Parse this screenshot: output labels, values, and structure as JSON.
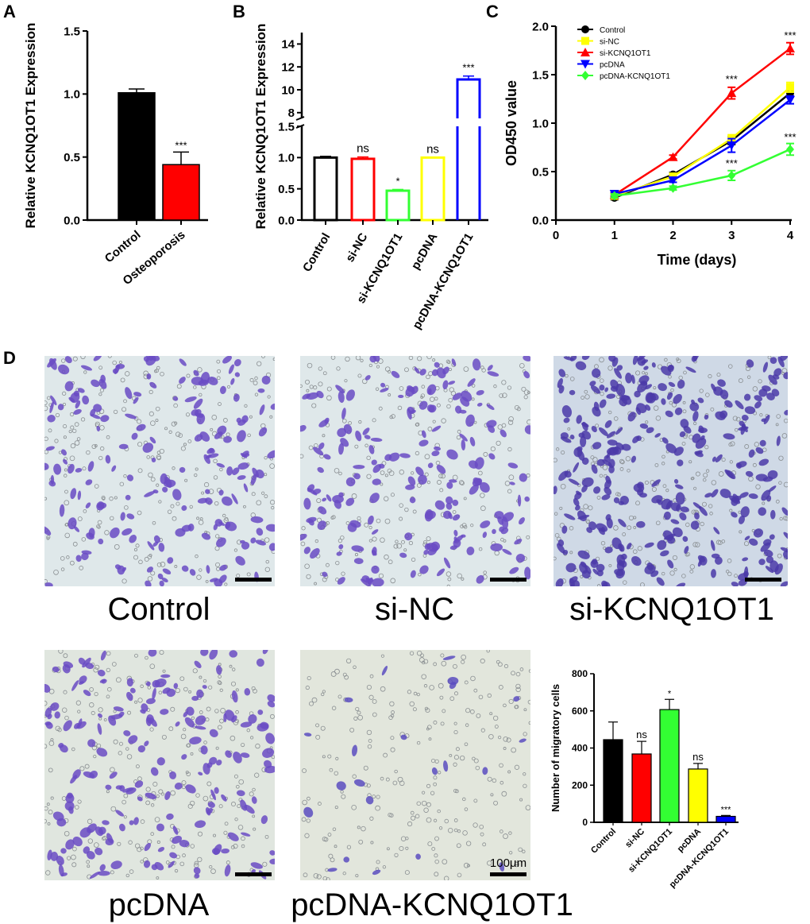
{
  "panel_letters": [
    "A",
    "B",
    "C",
    "D"
  ],
  "scale_bar_label": "100μm",
  "micrographs": [
    {
      "label": "Control",
      "density": "high"
    },
    {
      "label": "si-NC",
      "density": "high"
    },
    {
      "label": "si-KCNQ1OT1",
      "density": "very-high"
    },
    {
      "label": "pcDNA",
      "density": "high"
    },
    {
      "label": "pcDNA-KCNQ1OT1",
      "density": "low"
    }
  ],
  "colors": {
    "black": "#000000",
    "red": "#ff0000",
    "green": "#33ff33",
    "yellow": "#ffff00",
    "blue": "#0000ff",
    "stain": "#6a4bc4",
    "background": "#dfe8ea"
  },
  "chart_data": [
    {
      "id": "A",
      "type": "bar",
      "ylabel": "Relative KCNQ1OT1 Expression",
      "categories": [
        "Control",
        "Osteoporosis"
      ],
      "values": [
        1.01,
        0.44
      ],
      "errors": [
        0.03,
        0.1
      ],
      "colors": [
        "#000000",
        "#ff0000"
      ],
      "significance": [
        "",
        "***"
      ],
      "ylim": [
        0,
        1.5
      ],
      "yticks": [
        "0.0",
        "0.5",
        "1.0",
        "1.5"
      ]
    },
    {
      "id": "B",
      "type": "bar",
      "ylabel": "Relative KCNQ1OT1 Expression",
      "categories": [
        "Control",
        "si-NC",
        "si-KCNQ1OT1",
        "pcDNA",
        "pcDNA-KCNQ1OT1"
      ],
      "values": [
        1.0,
        0.98,
        0.47,
        1.0,
        10.9
      ],
      "errors": [
        0.02,
        0.03,
        0.02,
        0.0,
        0.3
      ],
      "colors": [
        "#000000",
        "#ff0000",
        "#33ff33",
        "#ffff00",
        "#0000ff"
      ],
      "significance": [
        "",
        "ns",
        "*",
        "ns",
        "***"
      ],
      "fill": "hollow",
      "axis_break": true,
      "ylim_lower": [
        0,
        1.5
      ],
      "ylim_upper": [
        7.5,
        15
      ],
      "yticks_lower": [
        "0.0",
        "0.5",
        "1.0",
        "1.5"
      ],
      "yticks_upper": [
        "8",
        "10",
        "12",
        "14"
      ]
    },
    {
      "id": "C",
      "type": "line",
      "xlabel": "Time (days)",
      "ylabel": "OD450 value",
      "xlim": [
        0,
        4
      ],
      "ylim": [
        0,
        2.0
      ],
      "xticks": [
        "0",
        "1",
        "2",
        "3",
        "4"
      ],
      "yticks": [
        "0.0",
        "0.5",
        "1.0",
        "1.5",
        "2.0"
      ],
      "x": [
        1,
        2,
        3,
        4
      ],
      "legend_position": "top-left",
      "series": [
        {
          "name": "Control",
          "color": "#000000",
          "marker": "circle",
          "values": [
            0.23,
            0.47,
            0.82,
            1.31
          ],
          "errors": [
            0.02,
            0.02,
            0.04,
            0.04
          ]
        },
        {
          "name": "si-NC",
          "color": "#ffff00",
          "marker": "square",
          "values": [
            0.25,
            0.45,
            0.84,
            1.37
          ],
          "errors": [
            0.02,
            0.02,
            0.04,
            0.05
          ]
        },
        {
          "name": "si-KCNQ1OT1",
          "color": "#ff0000",
          "marker": "triangle-up",
          "values": [
            0.26,
            0.65,
            1.31,
            1.77
          ],
          "errors": [
            0.02,
            0.02,
            0.06,
            0.06
          ]
        },
        {
          "name": "pcDNA",
          "color": "#0000ff",
          "marker": "triangle-down",
          "values": [
            0.27,
            0.41,
            0.77,
            1.24
          ],
          "errors": [
            0.02,
            0.02,
            0.07,
            0.04
          ]
        },
        {
          "name": "pcDNA-KCNQ1OT1",
          "color": "#33ff33",
          "marker": "diamond",
          "values": [
            0.25,
            0.33,
            0.46,
            0.73
          ],
          "errors": [
            0.02,
            0.02,
            0.05,
            0.06
          ]
        }
      ],
      "annotations": [
        {
          "x": 3,
          "y": 1.42,
          "text": "***"
        },
        {
          "x": 4,
          "y": 1.87,
          "text": "***"
        },
        {
          "x": 3,
          "y": 0.55,
          "text": "***"
        },
        {
          "x": 4,
          "y": 0.82,
          "text": "***"
        }
      ]
    },
    {
      "id": "D",
      "type": "bar",
      "ylabel": "Number of migratory cells",
      "categories": [
        "Control",
        "si-NC",
        "si-KCNQ1OT1",
        "pcDNA",
        "pcDNA-KCNQ1OT1"
      ],
      "values": [
        445,
        368,
        607,
        287,
        32
      ],
      "errors": [
        95,
        68,
        55,
        30,
        5
      ],
      "colors": [
        "#000000",
        "#ff0000",
        "#33ff33",
        "#ffff00",
        "#0000ff"
      ],
      "significance": [
        "",
        "ns",
        "*",
        "ns",
        "***"
      ],
      "ylim": [
        0,
        800
      ],
      "yticks": [
        "0",
        "200",
        "400",
        "600",
        "800"
      ]
    }
  ]
}
